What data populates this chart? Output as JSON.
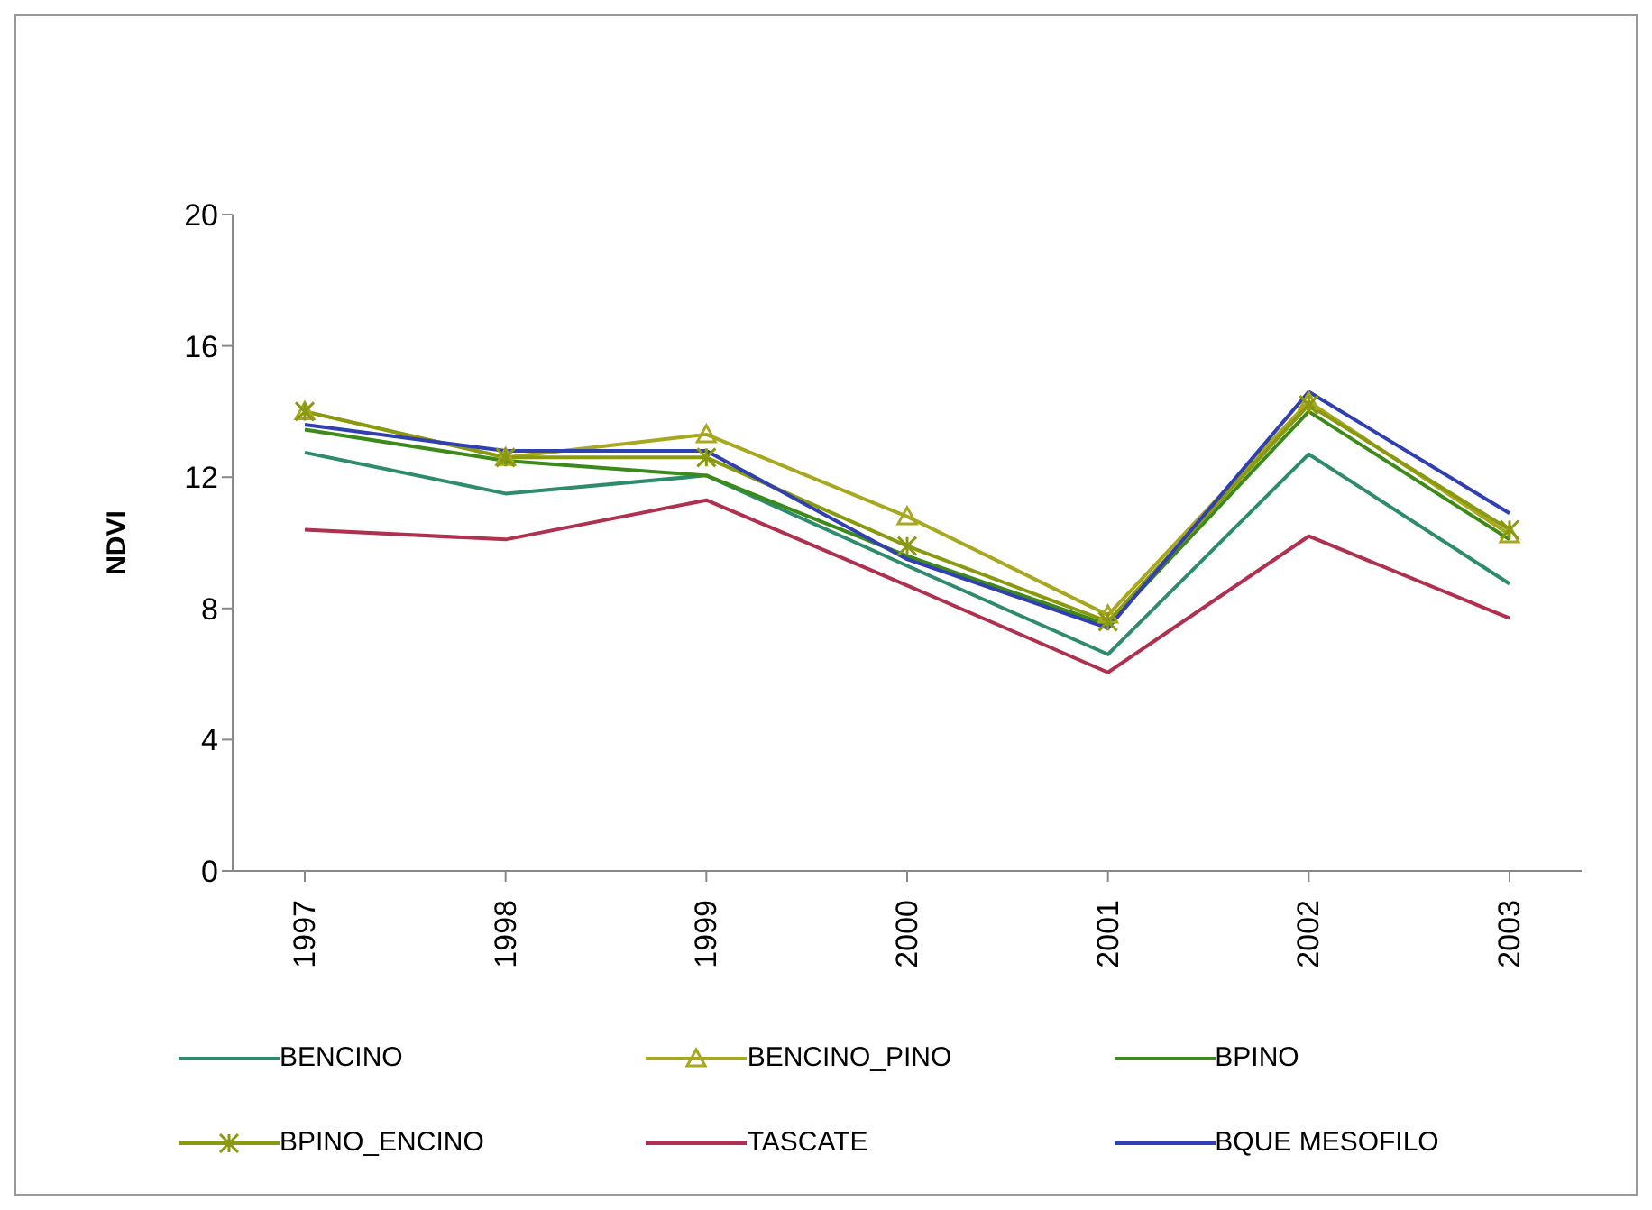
{
  "chart_data": {
    "type": "line",
    "ylabel": "NDVI",
    "categories": [
      "1997",
      "1998",
      "1999",
      "2000",
      "2001",
      "2002",
      "2003"
    ],
    "series": [
      {
        "name": "BENCINO",
        "color": "#2e8b6e",
        "marker": "none",
        "values": [
          12.75,
          11.5,
          12.05,
          9.3,
          6.6,
          12.7,
          8.75
        ]
      },
      {
        "name": "BENCINO_PINO",
        "color": "#a8a820",
        "marker": "triangle",
        "values": [
          14.0,
          12.6,
          13.3,
          10.8,
          7.8,
          14.3,
          10.25
        ]
      },
      {
        "name": "BPINO",
        "color": "#3c8a1a",
        "marker": "none",
        "values": [
          13.45,
          12.5,
          12.05,
          9.6,
          7.5,
          14.0,
          10.1
        ]
      },
      {
        "name": "BPINO_ENCINO",
        "color": "#8a9a10",
        "marker": "cross",
        "values": [
          14.0,
          12.6,
          12.6,
          9.9,
          7.6,
          14.2,
          10.4
        ]
      },
      {
        "name": "TASCATE",
        "color": "#b03050",
        "marker": "none",
        "values": [
          10.4,
          10.1,
          11.3,
          8.7,
          6.05,
          10.2,
          7.7
        ]
      },
      {
        "name": "BQUE MESOFILO",
        "color": "#3040b0",
        "marker": "none",
        "values": [
          13.6,
          12.8,
          12.8,
          9.5,
          7.4,
          14.6,
          10.9
        ]
      }
    ],
    "ylim": [
      0,
      20
    ],
    "yticks": [
      0,
      4,
      8,
      12,
      16,
      20
    ],
    "grid": false,
    "legend": "bottom",
    "line_style": "solid"
  }
}
